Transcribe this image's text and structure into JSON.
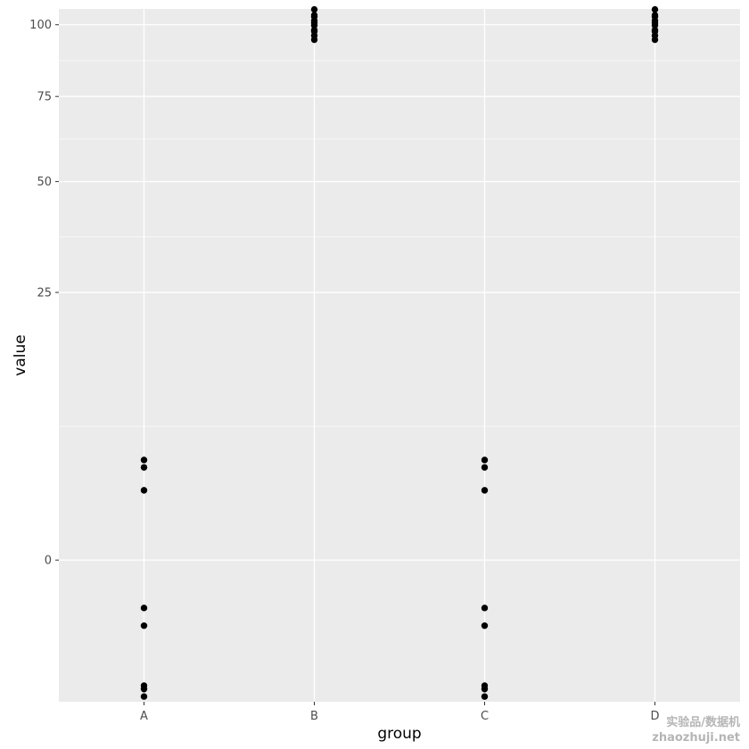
{
  "chart_data": {
    "type": "scatter",
    "title": "",
    "xlabel": "group",
    "ylabel": "value",
    "categories": [
      "A",
      "B",
      "C",
      "D"
    ],
    "y_ticks": [
      0,
      25,
      50,
      75,
      100
    ],
    "y_scale": "sqrt",
    "ylim": [
      -7,
      106
    ],
    "grid": true,
    "legend": "none",
    "colors": {
      "panel_background": "#ebebeb",
      "grid_major": "#ffffff",
      "point": "#000000",
      "tick_text": "#4d4d4d"
    },
    "series": [
      {
        "values": [
          {
            "x": "A",
            "ys": [
              -6.5,
              -5.8,
              -5.5,
              -1.5,
              -0.8,
              1.7,
              3.0,
              3.5
            ]
          },
          {
            "x": "B",
            "ys": [
              94.5,
              96.0,
              97.5,
              98.0,
              99.8,
              100.7,
              101.5,
              103.0,
              103.6,
              105.8
            ]
          },
          {
            "x": "C",
            "ys": [
              -6.5,
              -5.8,
              -5.5,
              -1.5,
              -0.8,
              1.7,
              3.0,
              3.5
            ]
          },
          {
            "x": "D",
            "ys": [
              94.5,
              96.0,
              97.5,
              98.0,
              99.8,
              100.7,
              101.5,
              103.0,
              103.6,
              105.8
            ]
          }
        ]
      }
    ]
  },
  "watermark": {
    "line1": "实验品/数据机",
    "line2": "zhaozhuji.net"
  }
}
